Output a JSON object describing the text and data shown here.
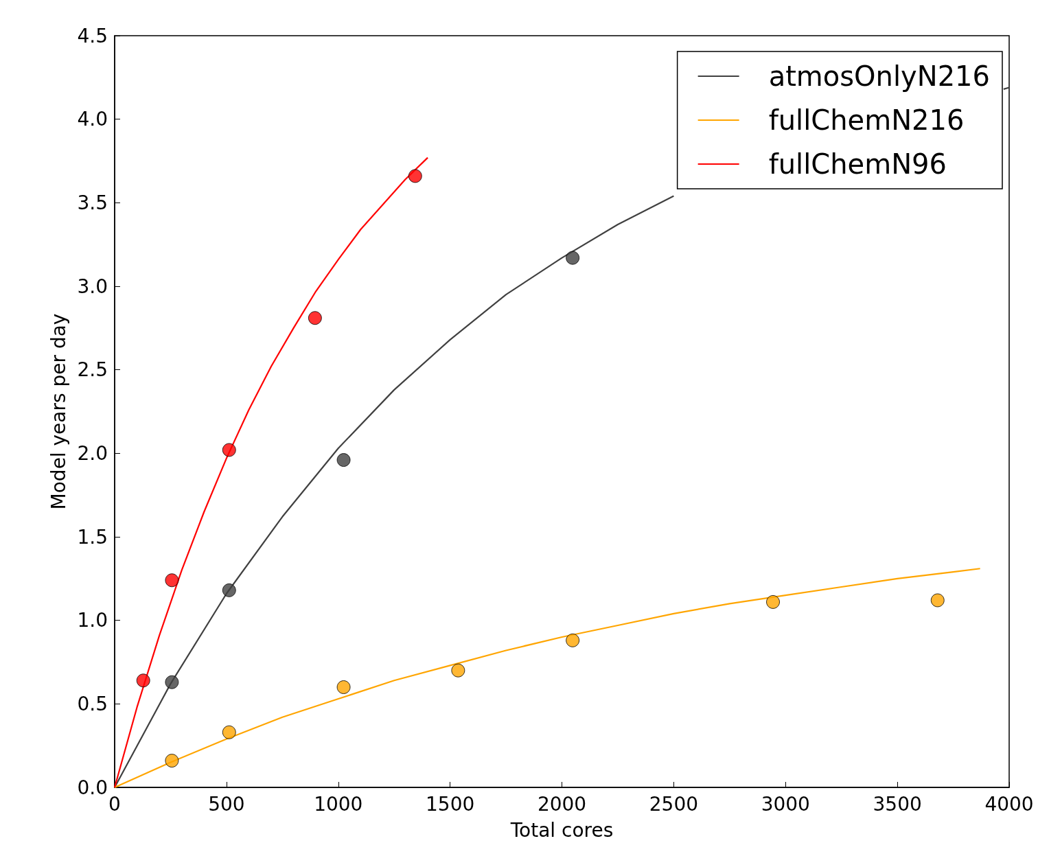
{
  "chart_data": {
    "type": "scatter",
    "xlabel": "Total cores",
    "ylabel": "Model years per day",
    "xlim": [
      0,
      4000
    ],
    "xticks": [
      0,
      500,
      1000,
      1500,
      2000,
      2500,
      3000,
      3500,
      4000
    ],
    "ylim": [
      0,
      4.5
    ],
    "yticks": [
      {
        "value": 0,
        "label": "0.0"
      },
      0.5,
      {
        "value": 1,
        "label": "1.0"
      },
      1.5,
      {
        "value": 2,
        "label": "2.0"
      },
      2.5,
      {
        "value": 3,
        "label": "3.0"
      },
      3.5,
      {
        "value": 4,
        "label": "4.0"
      },
      4.5
    ],
    "grid": false,
    "legend": "top right",
    "marker": "circle",
    "series": [
      {
        "name": "atmosOnlyN216",
        "type": "line",
        "marker": "none",
        "color": "#404040",
        "x": [
          0,
          250,
          500,
          750,
          1000,
          1250,
          1500,
          1750,
          2000,
          2250,
          2500,
          2750,
          3000,
          3250,
          3500,
          3750,
          3975,
          4000
        ],
        "values": [
          0,
          0.62,
          1.16,
          1.62,
          2.03,
          2.38,
          2.68,
          2.95,
          3.17,
          3.37,
          3.54,
          null,
          null,
          null,
          null,
          null,
          4.18,
          4.19
        ]
      },
      {
        "name": "fullChemN216",
        "type": "line",
        "marker": "none",
        "color": "#ffa500",
        "x": [
          0,
          250,
          500,
          750,
          1000,
          1250,
          1500,
          1750,
          2000,
          2250,
          2500,
          2750,
          3000,
          3250,
          3500,
          3750,
          3870
        ],
        "values": [
          0,
          0.15,
          0.29,
          0.42,
          0.53,
          0.64,
          0.73,
          0.82,
          0.9,
          0.97,
          1.04,
          1.1,
          1.15,
          1.2,
          1.25,
          1.29,
          1.31
        ]
      },
      {
        "name": "fullChemN96",
        "type": "line",
        "marker": "none",
        "color": "#ff0000",
        "x": [
          0,
          100,
          200,
          300,
          400,
          500,
          600,
          700,
          800,
          900,
          1000,
          1100,
          1200,
          1300,
          1400
        ],
        "values": [
          0,
          0.48,
          0.91,
          1.3,
          1.65,
          1.97,
          2.26,
          2.52,
          2.75,
          2.97,
          3.16,
          3.34,
          3.49,
          3.64,
          3.77
        ]
      },
      {
        "color": "#404040",
        "x": [
          256,
          512,
          1024,
          2048
        ],
        "values": [
          0.63,
          1.18,
          1.96,
          3.17
        ]
      },
      {
        "color": "#ffa500",
        "x": [
          256,
          512,
          1024,
          1536,
          2048,
          2944,
          3680
        ],
        "values": [
          0.16,
          0.33,
          0.6,
          0.7,
          0.88,
          1.11,
          1.12
        ]
      },
      {
        "color": "#ff0000",
        "x": [
          128,
          256,
          512,
          896,
          1344
        ],
        "values": [
          0.64,
          1.24,
          2.02,
          2.81,
          3.66
        ]
      }
    ]
  }
}
